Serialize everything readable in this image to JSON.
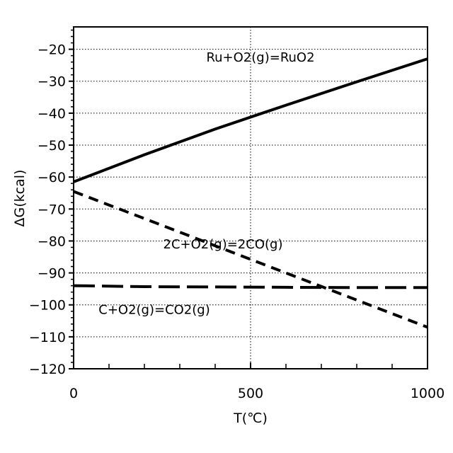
{
  "chart_data": {
    "type": "line",
    "title": "",
    "xlabel": "T(℃)",
    "ylabel": "ΔG(kcal)",
    "xlim": [
      0,
      1000
    ],
    "ylim": [
      -120,
      -13
    ],
    "x_ticks": [
      0,
      500,
      1000
    ],
    "x_tick_labels": [
      "0",
      "500",
      "1000"
    ],
    "y_ticks": [
      -20,
      -30,
      -40,
      -50,
      -60,
      -70,
      -80,
      -90,
      -100,
      -110,
      -120
    ],
    "y_tick_labels": [
      "−20",
      "−30",
      "−40",
      "−50",
      "−60",
      "−70",
      "−80",
      "−90",
      "−100",
      "−110",
      "−120"
    ],
    "grid": true,
    "legend": "none",
    "series": [
      {
        "name": "Ru+O2(g)=RuO2",
        "style": "solid",
        "x": [
          0,
          200,
          400,
          600,
          800,
          1000
        ],
        "y": [
          -61.5,
          -53.0,
          -45.0,
          -37.5,
          -30.2,
          -23.0
        ]
      },
      {
        "name": "2C+O2(g)=2CO(g)",
        "style": "dashed",
        "x": [
          0,
          200,
          400,
          600,
          800,
          1000
        ],
        "y": [
          -64.5,
          -73.0,
          -81.5,
          -90.0,
          -98.5,
          -107.0
        ]
      },
      {
        "name": "C+O2(g)=CO2(g)",
        "style": "longdash",
        "x": [
          0,
          200,
          400,
          600,
          800,
          1000
        ],
        "y": [
          -94.0,
          -94.3,
          -94.4,
          -94.5,
          -94.6,
          -94.6
        ]
      }
    ],
    "annotations": [
      {
        "text": "Ru+O2(g)=RuO2",
        "x": 528,
        "y": -22.5
      },
      {
        "text": "2C+O2(g)=2CO(g)",
        "x": 422,
        "y": -81.0
      },
      {
        "text": "C+O2(g)=CO2(g)",
        "x": 228,
        "y": -101.5
      }
    ]
  }
}
